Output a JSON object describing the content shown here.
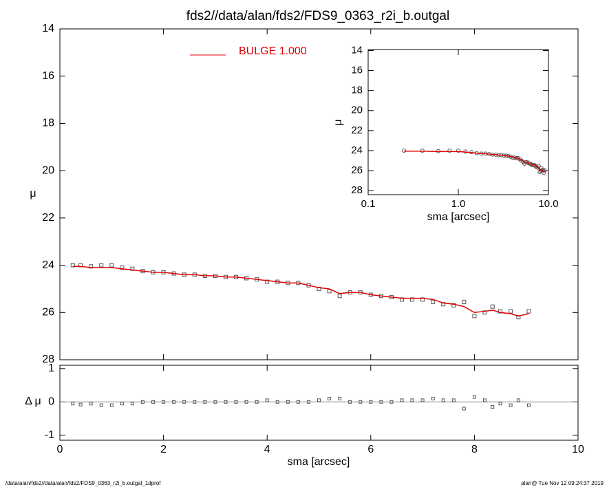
{
  "chart_data": [
    {
      "type": "scatter",
      "title": "fds2//data/alan/fds2/FDS9_0363_r2i_b.outgal",
      "ylabel": "μ",
      "x": [
        0.25,
        0.4,
        0.6,
        0.8,
        1.0,
        1.2,
        1.4,
        1.6,
        1.8,
        2.0,
        2.2,
        2.4,
        2.6,
        2.8,
        3.0,
        3.2,
        3.4,
        3.6,
        3.8,
        4.0,
        4.2,
        4.4,
        4.6,
        4.8,
        5.0,
        5.2,
        5.4,
        5.6,
        5.8,
        6.0,
        6.2,
        6.4,
        6.6,
        6.8,
        7.0,
        7.2,
        7.4,
        7.6,
        7.8,
        8.0,
        8.2,
        8.35,
        8.5,
        8.7,
        8.85,
        9.05
      ],
      "series": [
        {
          "color": "#555555",
          "marker": "square",
          "values": [
            24.0,
            24.0,
            24.05,
            24.0,
            24.0,
            24.1,
            24.15,
            24.25,
            24.3,
            24.3,
            24.35,
            24.4,
            24.4,
            24.45,
            24.45,
            24.5,
            24.5,
            24.55,
            24.6,
            24.7,
            24.7,
            24.75,
            24.75,
            24.85,
            25.0,
            25.1,
            25.3,
            25.15,
            25.15,
            25.25,
            25.3,
            25.35,
            25.45,
            25.45,
            25.45,
            25.55,
            25.65,
            25.7,
            25.55,
            26.15,
            26.0,
            25.75,
            25.95,
            25.95,
            26.2,
            25.95
          ]
        },
        {
          "name": "BULGE  1.000",
          "color": "#e00000",
          "marker": "line",
          "values": [
            24.05,
            24.05,
            24.1,
            24.1,
            24.1,
            24.15,
            24.2,
            24.25,
            24.3,
            24.3,
            24.35,
            24.4,
            24.4,
            24.45,
            24.45,
            24.5,
            24.5,
            24.55,
            24.6,
            24.65,
            24.7,
            24.75,
            24.75,
            24.85,
            24.95,
            25.0,
            25.2,
            25.15,
            25.15,
            25.25,
            25.3,
            25.35,
            25.4,
            25.4,
            25.4,
            25.45,
            25.6,
            25.65,
            25.75,
            26.0,
            25.95,
            25.9,
            26.0,
            26.05,
            26.15,
            26.05
          ]
        }
      ],
      "xlim": [
        0,
        10
      ],
      "xticks": [
        0,
        2,
        4,
        6,
        8,
        10
      ],
      "ylim": [
        14,
        28
      ],
      "yticks": [
        14,
        16,
        18,
        20,
        22,
        24,
        26,
        28
      ],
      "yreverse": true
    },
    {
      "type": "inset",
      "xlabel": "sma [arcsec]",
      "ylabel": "μ",
      "xlog": true,
      "xlim": [
        0.1,
        10
      ],
      "xticks": [
        {
          "value": 0.1,
          "label": "0.1"
        },
        {
          "value": 1,
          "label": "1.0"
        },
        {
          "value": 10,
          "label": "10.0"
        }
      ],
      "ylim": [
        13.9,
        28.4
      ],
      "yticks": [
        14,
        16,
        18,
        20,
        22,
        24,
        26,
        28
      ],
      "yreverse": true
    },
    {
      "type": "residual",
      "xlabel": "sma [arcsec]",
      "ylabel": "Δ μ",
      "color": "#555555",
      "values": [
        -0.05,
        -0.08,
        -0.05,
        -0.1,
        -0.1,
        -0.05,
        -0.05,
        0,
        0,
        0,
        0,
        0,
        0,
        0,
        0,
        0,
        0,
        0,
        0,
        0.05,
        0,
        0,
        0,
        0,
        0.05,
        0.1,
        0.1,
        0,
        0,
        0,
        0,
        0,
        0.05,
        0.05,
        0.05,
        0.1,
        0.05,
        0.05,
        -0.2,
        0.15,
        0.05,
        -0.15,
        -0.05,
        -0.1,
        0.05,
        -0.1
      ],
      "xlim": [
        0,
        10
      ],
      "xticks": [
        0,
        2,
        4,
        6,
        8,
        10
      ],
      "ylim": [
        -1.15,
        1.1
      ],
      "yticks": [
        -1,
        0,
        1
      ]
    }
  ],
  "footer": {
    "left": "/data/alan/fds2//data/alan/fds2/FDS9_0363_r2i_b.outgal_1dprof",
    "right": "alan@  Tue Nov 12 09:24:37 2019"
  }
}
